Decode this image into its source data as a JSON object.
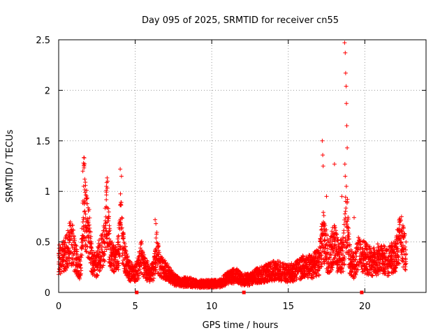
{
  "chart_data": {
    "type": "scatter",
    "title": "Day 095 of 2025, SRMTID for receiver cn55",
    "xlabel": "GPS time / hours",
    "ylabel": "SRMTID / TECUs",
    "xlim": [
      0,
      24
    ],
    "ylim": [
      0,
      2.5
    ],
    "x_ticks": [
      0,
      5,
      10,
      15,
      20
    ],
    "x_tick_labels": [
      "0",
      "5",
      "10",
      "15",
      "20"
    ],
    "y_ticks": [
      0,
      0.5,
      1,
      1.5,
      2,
      2.5
    ],
    "y_tick_labels": [
      "0",
      "0.5",
      "1",
      "1.5",
      "2",
      "2.5"
    ],
    "grid": true,
    "marker": "+",
    "series_color": "#ff0000",
    "gap_markers_x": [
      5.1,
      12.1,
      19.8
    ],
    "envelope": [
      [
        0.0,
        0.38
      ],
      [
        0.3,
        0.42
      ],
      [
        0.5,
        0.45
      ],
      [
        0.7,
        0.55
      ],
      [
        0.9,
        0.6
      ],
      [
        1.0,
        0.45
      ],
      [
        1.2,
        0.35
      ],
      [
        1.4,
        0.25
      ],
      [
        1.55,
        0.6
      ],
      [
        1.65,
        1.15
      ],
      [
        1.8,
        0.85
      ],
      [
        2.0,
        0.65
      ],
      [
        2.2,
        0.35
      ],
      [
        2.4,
        0.3
      ],
      [
        2.6,
        0.4
      ],
      [
        2.8,
        0.5
      ],
      [
        3.0,
        0.6
      ],
      [
        3.15,
        0.95
      ],
      [
        3.3,
        0.6
      ],
      [
        3.5,
        0.4
      ],
      [
        3.7,
        0.35
      ],
      [
        3.9,
        0.45
      ],
      [
        4.05,
        0.8
      ],
      [
        4.2,
        0.5
      ],
      [
        4.4,
        0.35
      ],
      [
        4.6,
        0.25
      ],
      [
        5.0,
        0.22
      ],
      [
        5.2,
        0.28
      ],
      [
        5.4,
        0.42
      ],
      [
        5.6,
        0.3
      ],
      [
        5.9,
        0.22
      ],
      [
        6.2,
        0.25
      ],
      [
        6.4,
        0.5
      ],
      [
        6.6,
        0.3
      ],
      [
        7.0,
        0.25
      ],
      [
        7.5,
        0.15
      ],
      [
        8.0,
        0.12
      ],
      [
        8.5,
        0.12
      ],
      [
        9.0,
        0.1
      ],
      [
        9.5,
        0.1
      ],
      [
        10.0,
        0.1
      ],
      [
        10.5,
        0.1
      ],
      [
        11.0,
        0.16
      ],
      [
        11.5,
        0.2
      ],
      [
        12.0,
        0.15
      ],
      [
        12.5,
        0.15
      ],
      [
        13.0,
        0.2
      ],
      [
        13.5,
        0.22
      ],
      [
        14.0,
        0.25
      ],
      [
        14.5,
        0.25
      ],
      [
        15.0,
        0.22
      ],
      [
        15.5,
        0.25
      ],
      [
        16.0,
        0.3
      ],
      [
        16.5,
        0.3
      ],
      [
        17.0,
        0.35
      ],
      [
        17.3,
        0.65
      ],
      [
        17.6,
        0.4
      ],
      [
        18.0,
        0.55
      ],
      [
        18.3,
        0.4
      ],
      [
        18.6,
        0.45
      ],
      [
        18.8,
        0.9
      ],
      [
        19.0,
        0.4
      ],
      [
        19.3,
        0.3
      ],
      [
        19.6,
        0.45
      ],
      [
        20.0,
        0.4
      ],
      [
        20.5,
        0.35
      ],
      [
        21.0,
        0.4
      ],
      [
        21.5,
        0.35
      ],
      [
        22.0,
        0.45
      ],
      [
        22.3,
        0.6
      ],
      [
        22.5,
        0.55
      ],
      [
        22.7,
        0.4
      ]
    ],
    "spikes": [
      [
        1.58,
        1.2
      ],
      [
        1.62,
        1.28
      ],
      [
        1.66,
        1.25
      ],
      [
        1.7,
        1.12
      ],
      [
        4.02,
        1.22
      ],
      [
        4.1,
        1.15
      ],
      [
        3.12,
        1.05
      ],
      [
        3.2,
        1.1
      ],
      [
        17.22,
        1.5
      ],
      [
        17.25,
        1.36
      ],
      [
        17.28,
        1.25
      ],
      [
        18.02,
        1.27
      ],
      [
        18.68,
        2.47
      ],
      [
        18.72,
        2.37
      ],
      [
        18.75,
        2.17
      ],
      [
        18.78,
        2.04
      ],
      [
        18.8,
        1.87
      ],
      [
        18.82,
        1.65
      ],
      [
        18.85,
        1.43
      ],
      [
        18.7,
        1.27
      ],
      [
        18.72,
        1.15
      ],
      [
        17.5,
        0.95
      ],
      [
        18.5,
        0.95
      ],
      [
        6.3,
        0.72
      ],
      [
        6.35,
        0.68
      ],
      [
        22.4,
        0.75
      ],
      [
        19.3,
        0.74
      ]
    ]
  }
}
